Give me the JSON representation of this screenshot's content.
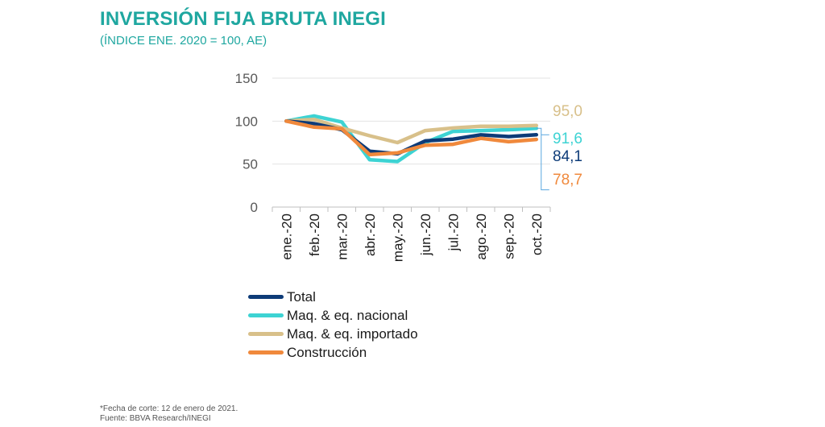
{
  "header": {
    "title": "INVERSIÓN FIJA BRUTA INEGI",
    "subtitle": "(ÍNDICE ENE. 2020 = 100, AE)"
  },
  "footer": {
    "note": "*Fecha de corte: 12 de enero de 2021.",
    "source": "Fuente: BBVA Research/INEGI"
  },
  "chart_data": {
    "type": "line",
    "categories": [
      "ene.-20",
      "feb.-20",
      "mar.-20",
      "abr.-20",
      "may.-20",
      "jun.-20",
      "jul.-20",
      "ago.-20",
      "sep.-20",
      "oct.-20"
    ],
    "ylim": [
      0,
      150
    ],
    "yticks": [
      0,
      50,
      100,
      150
    ],
    "grid": true,
    "legend_position": "bottom",
    "series": [
      {
        "name": "Total",
        "color": "#0d3b78",
        "values": [
          100,
          97,
          90,
          65,
          62,
          77,
          79,
          84,
          82,
          84.1
        ],
        "end_label": "84,1"
      },
      {
        "name": "Maq. & eq. nacional",
        "color": "#3dd3d3",
        "values": [
          100,
          106,
          99,
          55,
          53,
          75,
          88,
          89,
          90,
          91.6
        ],
        "end_label": "91,6"
      },
      {
        "name": "Maq. & eq. importado",
        "color": "#d8c08a",
        "values": [
          100,
          102,
          92,
          83,
          75,
          89,
          92,
          94,
          94,
          95.0
        ],
        "end_label": "95,0"
      },
      {
        "name": "Construcción",
        "color": "#f0893c",
        "values": [
          100,
          93,
          91,
          61,
          63,
          72,
          73,
          80,
          76,
          78.7
        ],
        "end_label": "78,7"
      }
    ]
  }
}
